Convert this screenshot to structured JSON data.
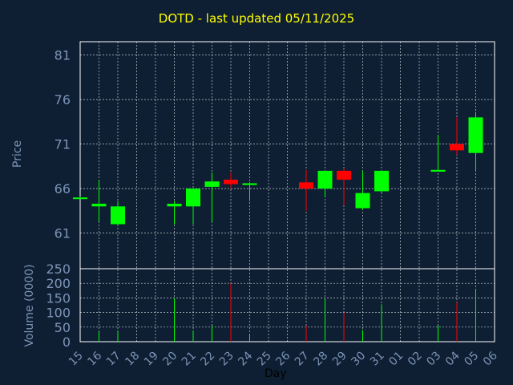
{
  "chart_data": {
    "type": "candlestick",
    "title": "DOTD - last updated 05/11/2025",
    "ylabel_price": "Price",
    "ylabel_volume": "Volume (0000)",
    "xlabel": "Day",
    "price_ylim": [
      57,
      82.5
    ],
    "price_ticks": [
      61,
      66,
      71,
      76,
      81
    ],
    "volume_ylim": [
      0,
      250
    ],
    "volume_ticks": [
      0,
      50,
      100,
      150,
      200,
      250
    ],
    "x_ticks": [
      "15",
      "16",
      "17",
      "18",
      "19",
      "20",
      "21",
      "22",
      "23",
      "24",
      "25",
      "26",
      "27",
      "28",
      "29",
      "30",
      "31",
      "01",
      "02",
      "03",
      "04",
      "05",
      "06"
    ],
    "grid": true,
    "colors": {
      "up": "#00ff00",
      "down": "#ff0000",
      "background": "#0e1f33",
      "grid": "#ffffff",
      "axis_text": "#7b93b4",
      "title": "#ffff00"
    },
    "candles": [
      {
        "day": "15",
        "open": 65.0,
        "high": 65.1,
        "low": 64.9,
        "close": 65.0,
        "volume": 0
      },
      {
        "day": "16",
        "open": 64.0,
        "high": 66.9,
        "low": 62.3,
        "close": 64.3,
        "volume": 35
      },
      {
        "day": "17",
        "open": 62.0,
        "high": 64.6,
        "low": 61.9,
        "close": 64.0,
        "volume": 35
      },
      {
        "day": "20",
        "open": 64.0,
        "high": 64.6,
        "low": 62.0,
        "close": 64.3,
        "volume": 148
      },
      {
        "day": "21",
        "open": 64.0,
        "high": 66.0,
        "low": 62.0,
        "close": 66.0,
        "volume": 38
      },
      {
        "day": "22",
        "open": 66.2,
        "high": 67.8,
        "low": 62.2,
        "close": 66.8,
        "volume": 55
      },
      {
        "day": "23",
        "open": 67.0,
        "high": 67.8,
        "low": 66.0,
        "close": 66.5,
        "volume": 200
      },
      {
        "day": "24",
        "open": 66.4,
        "high": 66.7,
        "low": 64.6,
        "close": 66.6,
        "volume": 25
      },
      {
        "day": "27",
        "open": 66.7,
        "high": 68.1,
        "low": 63.5,
        "close": 66.0,
        "volume": 55
      },
      {
        "day": "28",
        "open": 66.0,
        "high": 68.0,
        "low": 65.0,
        "close": 68.0,
        "volume": 148
      },
      {
        "day": "29",
        "open": 68.0,
        "high": 68.3,
        "low": 64.1,
        "close": 67.0,
        "volume": 100
      },
      {
        "day": "30",
        "open": 63.8,
        "high": 68.0,
        "low": 63.6,
        "close": 65.5,
        "volume": 40
      },
      {
        "day": "31",
        "open": 65.7,
        "high": 68.0,
        "low": 65.5,
        "close": 68.0,
        "volume": 128
      },
      {
        "day": "03",
        "open": 67.9,
        "high": 72.0,
        "low": 67.9,
        "close": 68.1,
        "volume": 55
      },
      {
        "day": "04",
        "open": 71.0,
        "high": 74.0,
        "low": 69.8,
        "close": 70.3,
        "volume": 135
      },
      {
        "day": "05",
        "open": 70.0,
        "high": 74.6,
        "low": 68.0,
        "close": 74.0,
        "volume": 180
      }
    ]
  }
}
